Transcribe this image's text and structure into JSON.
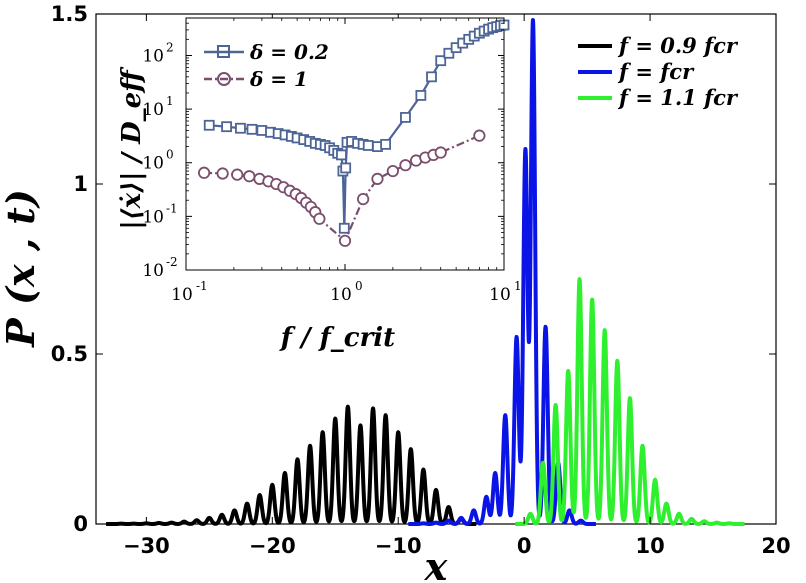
{
  "chart_data": [
    {
      "type": "line",
      "title": "",
      "xlabel": "x",
      "ylabel": "P (x , t)",
      "xlim": [
        -34,
        20
      ],
      "ylim": [
        0,
        1.5
      ],
      "xticks": [
        "−30",
        "−20",
        "−10",
        "0",
        "10",
        "20"
      ],
      "xtick_values": [
        -30,
        -20,
        -10,
        0,
        10,
        20
      ],
      "yticks": [
        "0",
        "0.5",
        "1",
        "1.5"
      ],
      "ytick_values": [
        0,
        0.5,
        1,
        1.5
      ],
      "legend_position": "top-right",
      "series": [
        {
          "name": "f = 0.9 f_cr",
          "label": "f = 0.9 fcr",
          "color": "#000000",
          "peaks": [
            [
              -32,
              0.001
            ],
            [
              -31,
              0.001
            ],
            [
              -30,
              0.002
            ],
            [
              -29,
              0.003
            ],
            [
              -28,
              0.004
            ],
            [
              -27,
              0.007
            ],
            [
              -26,
              0.011
            ],
            [
              -25,
              0.018
            ],
            [
              -24,
              0.027
            ],
            [
              -23,
              0.04
            ],
            [
              -22,
              0.06
            ],
            [
              -21,
              0.085
            ],
            [
              -20,
              0.115
            ],
            [
              -19,
              0.15
            ],
            [
              -18,
              0.19
            ],
            [
              -17,
              0.23
            ],
            [
              -16,
              0.27
            ],
            [
              -15,
              0.31
            ],
            [
              -14,
              0.345
            ],
            [
              -13,
              0.29
            ],
            [
              -12,
              0.34
            ],
            [
              -11,
              0.32
            ],
            [
              -10,
              0.27
            ],
            [
              -9,
              0.22
            ],
            [
              -8,
              0.16
            ],
            [
              -7,
              0.1
            ],
            [
              -6,
              0.05
            ],
            [
              -5,
              0.015
            ]
          ]
        },
        {
          "name": "f = f_cr",
          "label": "f = fcr",
          "color": "#0a14e6",
          "peaks": [
            [
              -8,
              0.002
            ],
            [
              -7,
              0.004
            ],
            [
              -6,
              0.01
            ],
            [
              -5,
              0.018
            ],
            [
              -4,
              0.04
            ],
            [
              -3,
              0.08
            ],
            [
              -2.3,
              0.15
            ],
            [
              -1.5,
              0.32
            ],
            [
              -0.6,
              0.55
            ],
            [
              0.1,
              1.1
            ],
            [
              0.7,
              1.48
            ],
            [
              1.7,
              0.58
            ],
            [
              2.7,
              0.18
            ],
            [
              3.6,
              0.04
            ],
            [
              4.5,
              0.01
            ]
          ]
        },
        {
          "name": "f = 1.1 f_cr",
          "label": "f = 1.1 fcr",
          "color": "#2ef02e",
          "peaks": [
            [
              0.5,
              0.03
            ],
            [
              1.5,
              0.18
            ],
            [
              2.5,
              0.35
            ],
            [
              3.5,
              0.45
            ],
            [
              4.4,
              0.72
            ],
            [
              5.4,
              0.66
            ],
            [
              6.4,
              0.57
            ],
            [
              7.4,
              0.48
            ],
            [
              8.4,
              0.37
            ],
            [
              9.4,
              0.23
            ],
            [
              10.4,
              0.13
            ],
            [
              11.3,
              0.06
            ],
            [
              12.3,
              0.03
            ],
            [
              13.3,
              0.015
            ],
            [
              14.3,
              0.008
            ],
            [
              15.3,
              0.004
            ],
            [
              16.3,
              0.002
            ]
          ]
        }
      ]
    },
    {
      "type": "line",
      "title": "",
      "xlabel": "f / f_crit",
      "ylabel": "|⟨ẋ⟩| / D_eff",
      "xscale": "log",
      "yscale": "log",
      "xlim": [
        0.1,
        10
      ],
      "ylim": [
        0.01,
        500
      ],
      "xticks": [
        "10",
        "10",
        "10"
      ],
      "xtick_exponents": [
        "-1",
        "0",
        "1"
      ],
      "xtick_values": [
        0.1,
        1,
        10
      ],
      "yticks": [
        "10",
        "10",
        "10",
        "10",
        "10"
      ],
      "ytick_exponents": [
        "-2",
        "-1",
        "0",
        "1",
        "2"
      ],
      "ytick_values": [
        0.01,
        0.1,
        1,
        10,
        100
      ],
      "legend_position": "top-left",
      "series": [
        {
          "name": "δ = 0.2",
          "label": "δ = 0.2",
          "color": "#4c6596",
          "marker": "square",
          "line": "solid",
          "points": [
            [
              0.14,
              5.0
            ],
            [
              0.18,
              4.7
            ],
            [
              0.22,
              4.4
            ],
            [
              0.26,
              4.2
            ],
            [
              0.3,
              4.0
            ],
            [
              0.34,
              3.7
            ],
            [
              0.38,
              3.5
            ],
            [
              0.42,
              3.3
            ],
            [
              0.46,
              3.1
            ],
            [
              0.5,
              2.9
            ],
            [
              0.55,
              2.7
            ],
            [
              0.6,
              2.5
            ],
            [
              0.65,
              2.3
            ],
            [
              0.7,
              2.2
            ],
            [
              0.75,
              2.1
            ],
            [
              0.8,
              1.9
            ],
            [
              0.85,
              1.7
            ],
            [
              0.9,
              1.5
            ],
            [
              0.95,
              1.4
            ],
            [
              0.97,
              0.7
            ],
            [
              0.99,
              0.06
            ],
            [
              1.01,
              0.8
            ],
            [
              1.03,
              2.4
            ],
            [
              1.1,
              2.5
            ],
            [
              1.2,
              2.3
            ],
            [
              1.3,
              2.2
            ],
            [
              1.4,
              2.1
            ],
            [
              1.6,
              2.0
            ],
            [
              1.8,
              2.2
            ],
            [
              2.4,
              7.0
            ],
            [
              3.0,
              18
            ],
            [
              3.5,
              40
            ],
            [
              4.0,
              80
            ],
            [
              4.5,
              110
            ],
            [
              5.0,
              140
            ],
            [
              5.5,
              170
            ],
            [
              6.0,
              200
            ],
            [
              6.5,
              230
            ],
            [
              7.0,
              260
            ],
            [
              7.5,
              285
            ],
            [
              8.0,
              310
            ],
            [
              8.5,
              330
            ],
            [
              9.0,
              345
            ],
            [
              9.5,
              360
            ],
            [
              10.0,
              370
            ]
          ]
        },
        {
          "name": "δ = 1",
          "label": "δ = 1",
          "color": "#7a4e6e",
          "marker": "circle",
          "line": "dash-dot",
          "points": [
            [
              0.13,
              0.65
            ],
            [
              0.17,
              0.63
            ],
            [
              0.21,
              0.6
            ],
            [
              0.25,
              0.56
            ],
            [
              0.29,
              0.5
            ],
            [
              0.33,
              0.45
            ],
            [
              0.37,
              0.4
            ],
            [
              0.41,
              0.35
            ],
            [
              0.45,
              0.3
            ],
            [
              0.49,
              0.26
            ],
            [
              0.53,
              0.22
            ],
            [
              0.57,
              0.18
            ],
            [
              0.61,
              0.15
            ],
            [
              0.65,
              0.12
            ],
            [
              0.69,
              0.09
            ],
            [
              1.0,
              0.035
            ],
            [
              1.3,
              0.21
            ],
            [
              1.6,
              0.5
            ],
            [
              2.0,
              0.7
            ],
            [
              2.4,
              0.9
            ],
            [
              2.8,
              1.1
            ],
            [
              3.2,
              1.25
            ],
            [
              3.6,
              1.4
            ],
            [
              4.0,
              1.55
            ],
            [
              7.0,
              3.2
            ]
          ]
        }
      ]
    }
  ]
}
